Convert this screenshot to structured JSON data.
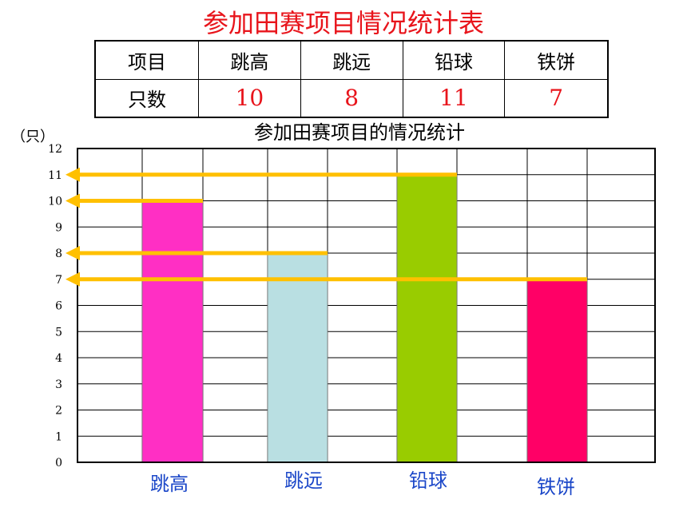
{
  "header": {
    "title": "参加田赛项目情况统计表"
  },
  "table": {
    "col_header": "项目",
    "row_header": "只数",
    "columns": [
      "跳高",
      "跳远",
      "铅球",
      "铁饼"
    ],
    "values": [
      "10",
      "8",
      "11",
      "7"
    ]
  },
  "chart_data": {
    "type": "bar",
    "title": "参加田赛项目的情况统计",
    "ylabel": "（只）",
    "xlabel": "",
    "categories": [
      "跳高",
      "跳远",
      "铅球",
      "铁饼"
    ],
    "values": [
      10,
      8,
      11,
      7
    ],
    "ylim": [
      0,
      12
    ],
    "yticks": [
      0,
      1,
      2,
      3,
      4,
      5,
      6,
      7,
      8,
      9,
      10,
      11,
      12
    ],
    "grid": true,
    "bar_colors": [
      "#ff2fc4",
      "#b9dfe2",
      "#99cc00",
      "#ff0066"
    ],
    "arrow_color": "#ffc000",
    "legend": "none"
  }
}
